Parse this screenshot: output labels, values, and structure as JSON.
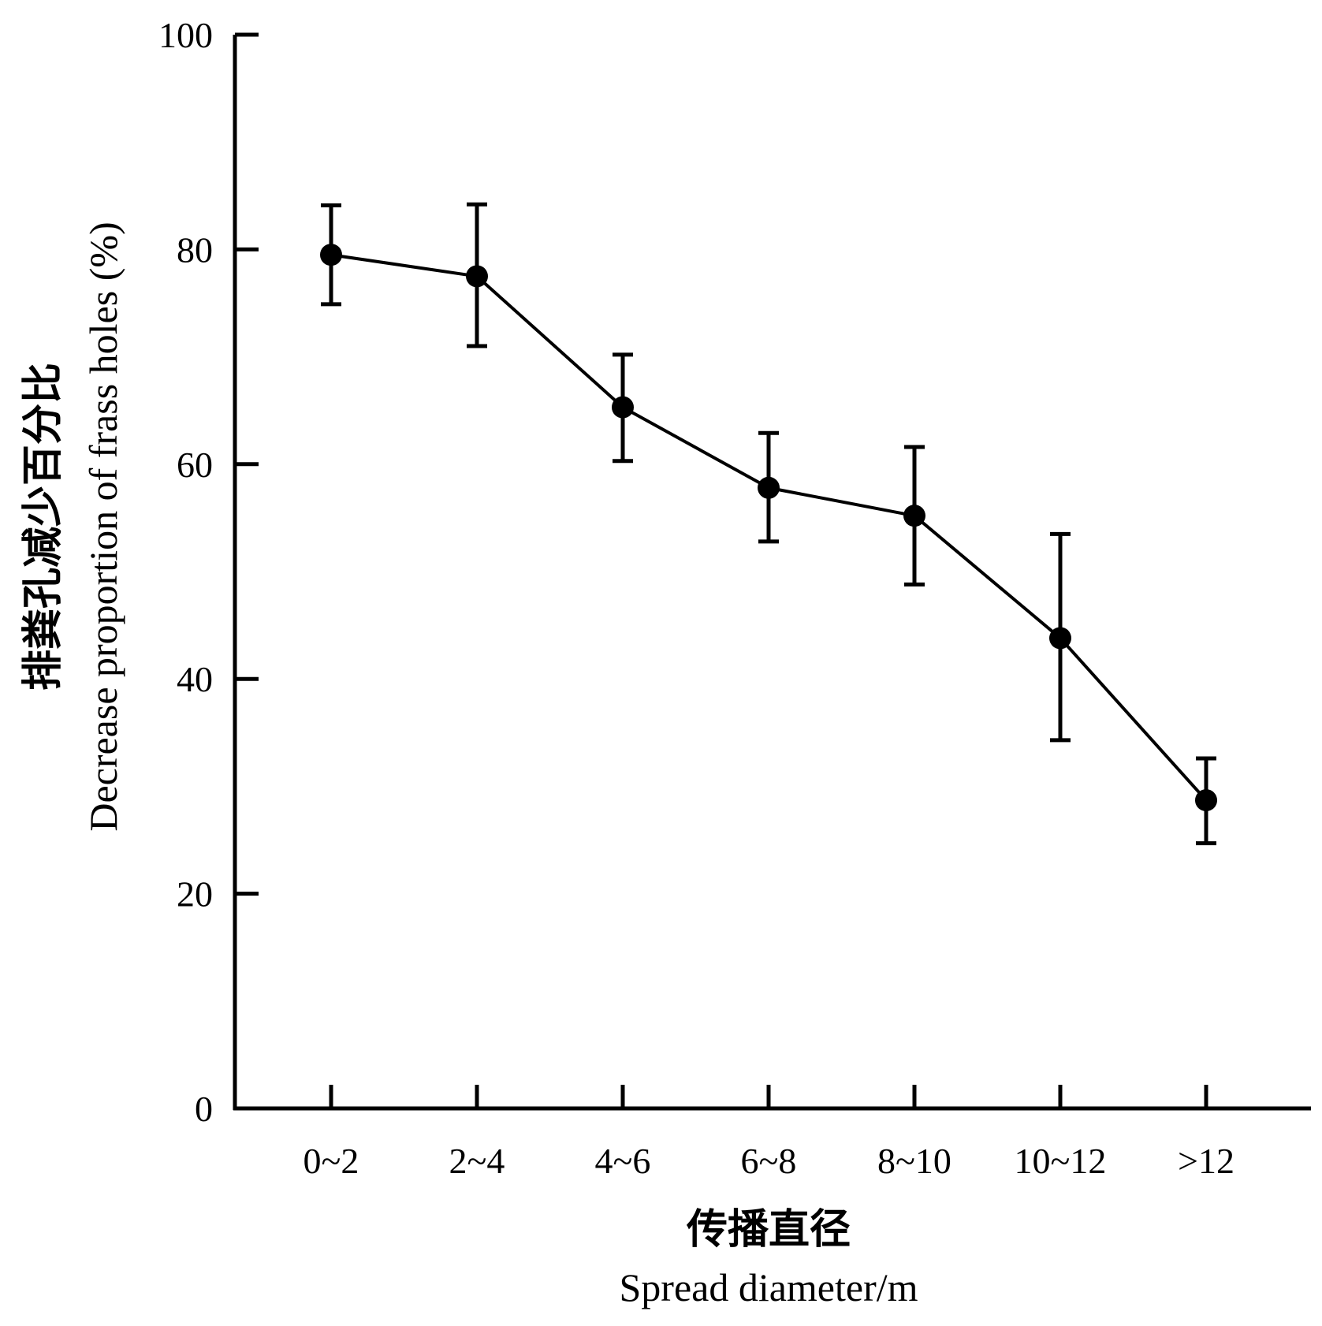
{
  "chart_data": {
    "type": "line",
    "categories": [
      "0~2",
      "2~4",
      "4~6",
      "6~8",
      "8~10",
      "10~12",
      ">12"
    ],
    "series": [
      {
        "values": [
          79.5,
          77.5,
          65.3,
          57.8,
          55.2,
          43.8,
          28.7
        ],
        "error_low": [
          74.9,
          71.0,
          60.3,
          52.8,
          48.8,
          34.3,
          24.7
        ],
        "error_high": [
          84.1,
          84.2,
          70.2,
          62.9,
          61.6,
          53.5,
          32.6
        ]
      }
    ],
    "ylim": [
      0,
      100
    ],
    "yticks": [
      0,
      20,
      40,
      60,
      80,
      100
    ],
    "ylabel_cn": "排粪孔减少百分比",
    "ylabel_en": "Decrease proportion of frass holes (%)",
    "xlabel_cn": "传播直径",
    "xlabel_en": "Spread diameter/m",
    "grid": false,
    "legend": "none",
    "colors": {
      "line": "#000000",
      "marker": "#000000",
      "axis": "#000000"
    }
  }
}
